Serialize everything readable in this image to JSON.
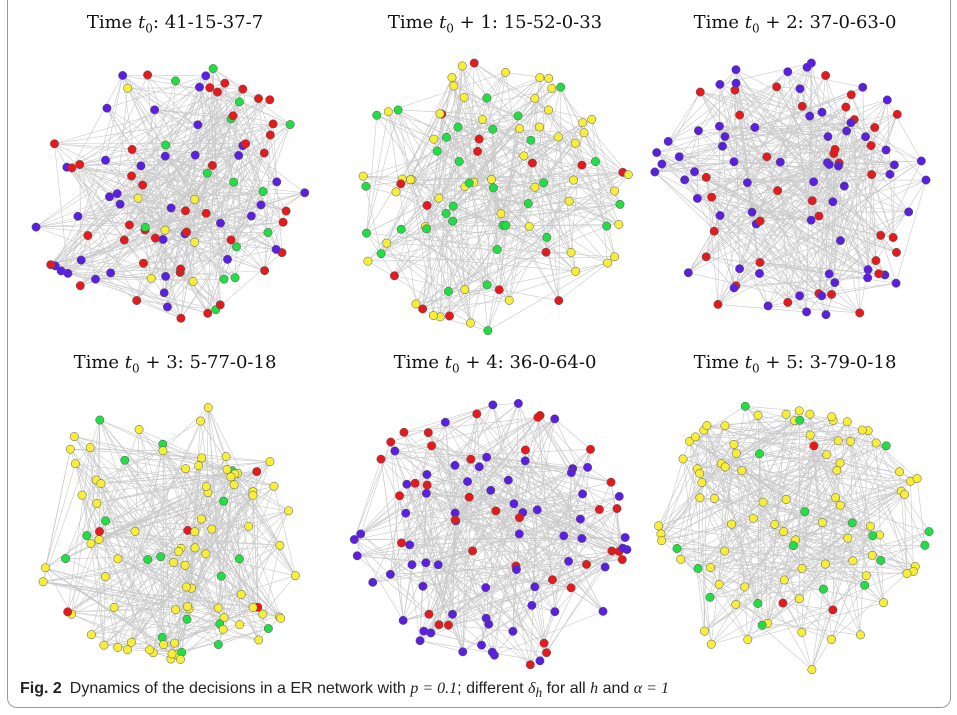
{
  "panels": [
    {
      "label": "Time",
      "sym": "t",
      "sub": "0",
      "offset": "",
      "counts": "41-15-37-7",
      "dist": {
        "red": 41,
        "green": 15,
        "blue": 37,
        "yellow": 7
      }
    },
    {
      "label": "Time",
      "sym": "t",
      "sub": "0",
      "offset": " + 1",
      "counts": "15-52-0-33",
      "dist": {
        "red": 15,
        "yellow": 52,
        "blue": 0,
        "green": 33
      }
    },
    {
      "label": "Time",
      "sym": "t",
      "sub": "0",
      "offset": " + 2",
      "counts": "37-0-63-0",
      "dist": {
        "red": 37,
        "green": 0,
        "blue": 63,
        "yellow": 0
      }
    },
    {
      "label": "Time",
      "sym": "t",
      "sub": "0",
      "offset": " + 3",
      "counts": "5-77-0-18",
      "dist": {
        "red": 5,
        "yellow": 77,
        "blue": 0,
        "green": 18
      }
    },
    {
      "label": "Time",
      "sym": "t",
      "sub": "0",
      "offset": " + 4",
      "counts": "36-0-64-0",
      "dist": {
        "red": 36,
        "green": 0,
        "blue": 64,
        "yellow": 0
      }
    },
    {
      "label": "Time",
      "sym": "t",
      "sub": "0",
      "offset": " + 5",
      "counts": "3-79-0-18",
      "dist": {
        "red": 3,
        "yellow": 79,
        "blue": 0,
        "green": 18
      }
    }
  ],
  "colors": {
    "red": "#e41a1c",
    "green": "#22dd44",
    "blue": "#5a1fe0",
    "yellow": "#f7ee3a",
    "edge": "#c9c9c9",
    "node_stroke": "#555555"
  },
  "caption": {
    "fig_label": "Fig. 2",
    "text_a": "Dynamics of the decisions in a ER network with ",
    "math_p": "p = 0.1",
    "text_b": "; different ",
    "math_delta": "δ",
    "math_delta_sub": "h",
    "text_c": " for all ",
    "math_h": "h",
    "text_d": " and ",
    "math_alpha": "α = 1"
  }
}
